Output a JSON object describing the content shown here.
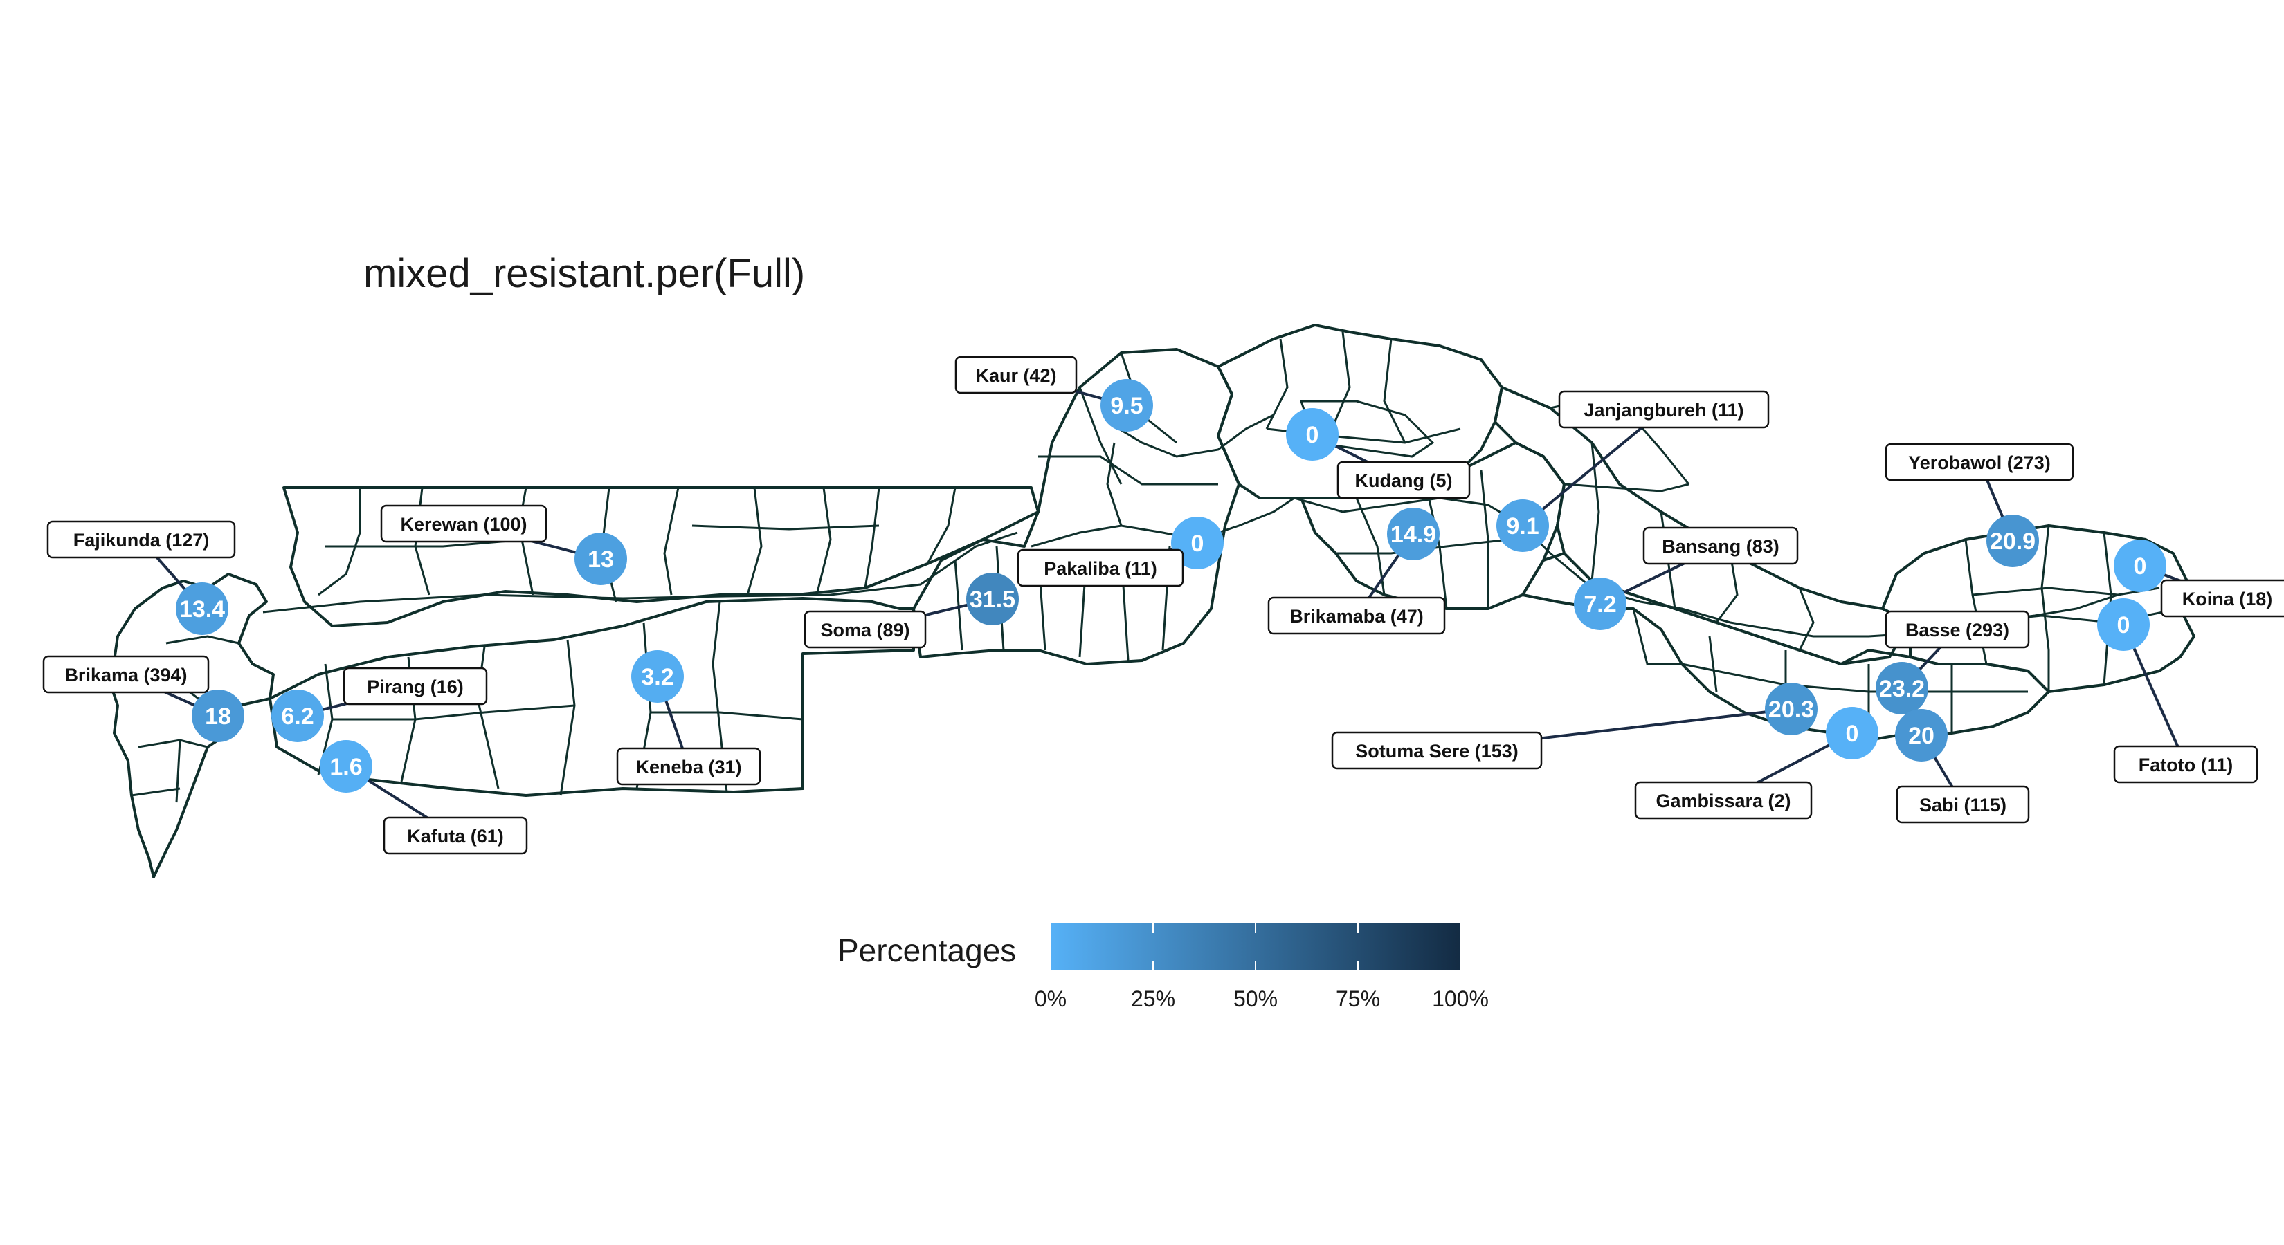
{
  "title": "mixed_resistant.per(Full)",
  "legend": {
    "title": "Percentages",
    "ticks": [
      "0%",
      "25%",
      "50%",
      "75%",
      "100%"
    ],
    "color_low": "#56B1F7",
    "color_high": "#132B43"
  },
  "colors": {
    "boundary": "#0f2f2b",
    "leader": "#1b2b45",
    "label_bg": "#ffffff"
  },
  "chart_data": {
    "type": "map",
    "variable": "mixed_resistant.per(Full)",
    "scale": "continuous gradient 0-100%",
    "sites": [
      {
        "name": "Fajikunda",
        "n": 127,
        "value": 13.4,
        "label": "Fajikunda (127)",
        "value_text": "13.4"
      },
      {
        "name": "Brikama",
        "n": 394,
        "value": 18,
        "label": "Brikama (394)",
        "value_text": "18"
      },
      {
        "name": "Pirang",
        "n": 16,
        "value": 6.2,
        "label": "Pirang (16)",
        "value_text": "6.2"
      },
      {
        "name": "Kafuta",
        "n": 61,
        "value": 1.6,
        "label": "Kafuta (61)",
        "value_text": "1.6"
      },
      {
        "name": "Kerewan",
        "n": 100,
        "value": 13,
        "label": "Kerewan (100)",
        "value_text": "13"
      },
      {
        "name": "Keneba",
        "n": 31,
        "value": 3.2,
        "label": "Keneba (31)",
        "value_text": "3.2"
      },
      {
        "name": "Soma",
        "n": 89,
        "value": 31.5,
        "label": "Soma (89)",
        "value_text": "31.5"
      },
      {
        "name": "Kaur",
        "n": 42,
        "value": 9.5,
        "label": "Kaur (42)",
        "value_text": "9.5"
      },
      {
        "name": "Pakaliba",
        "n": 11,
        "value": 0,
        "label": "Pakaliba (11)",
        "value_text": "0"
      },
      {
        "name": "Kudang",
        "n": 5,
        "value": 0,
        "label": "Kudang (5)",
        "value_text": "0"
      },
      {
        "name": "Brikamaba",
        "n": 47,
        "value": 14.9,
        "label": "Brikamaba (47)",
        "value_text": "14.9"
      },
      {
        "name": "Janjangbureh",
        "n": 11,
        "value": 9.1,
        "label": "Janjangbureh (11)",
        "value_text": "9.1"
      },
      {
        "name": "Bansang",
        "n": 83,
        "value": 7.2,
        "label": "Bansang (83)",
        "value_text": "7.2"
      },
      {
        "name": "Sotuma Sere",
        "n": 153,
        "value": 20.3,
        "label": "Sotuma Sere (153)",
        "value_text": "20.3"
      },
      {
        "name": "Gambissara",
        "n": 2,
        "value": 0,
        "label": "Gambissara (2)",
        "value_text": "0"
      },
      {
        "name": "Basse",
        "n": 293,
        "value": 23.2,
        "label": "Basse (293)",
        "value_text": "23.2"
      },
      {
        "name": "Sabi",
        "n": 115,
        "value": 20,
        "label": "Sabi (115)",
        "value_text": "20"
      },
      {
        "name": "Yerobawol",
        "n": 273,
        "value": 20.9,
        "label": "Yerobawol (273)",
        "value_text": "20.9"
      },
      {
        "name": "Koina",
        "n": 18,
        "value": 0,
        "label": "Koina (18)",
        "value_text": "0"
      },
      {
        "name": "Fatoto",
        "n": 11,
        "value": 0,
        "label": "Fatoto (11)",
        "value_text": "0"
      }
    ]
  }
}
